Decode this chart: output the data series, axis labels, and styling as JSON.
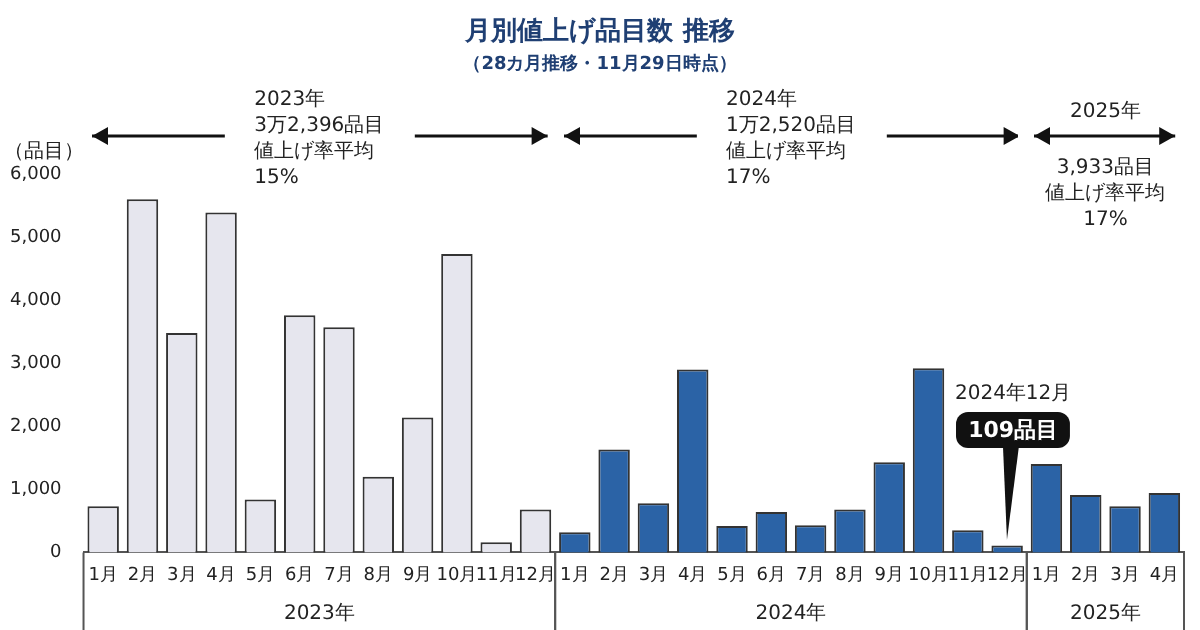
{
  "chart_data": {
    "type": "bar",
    "title": "月別値上げ品目数 推移",
    "subtitle": "（28カ月推移・11月29日時点）",
    "ylabel": "（品目）",
    "categories": [
      "1月",
      "2月",
      "3月",
      "4月",
      "5月",
      "6月",
      "7月",
      "8月",
      "9月",
      "10月",
      "11月",
      "12月",
      "1月",
      "2月",
      "3月",
      "4月",
      "5月",
      "6月",
      "7月",
      "8月",
      "9月",
      "10月",
      "11月",
      "12月",
      "1月",
      "2月",
      "3月",
      "4月"
    ],
    "series": [
      {
        "name": "2023年",
        "color": "#e6e6ee",
        "values": [
          730,
          5600,
          3480,
          5390,
          840,
          3760,
          3570,
          1200,
          2140,
          4730,
          160,
          680,
          null,
          null,
          null,
          null,
          null,
          null,
          null,
          null,
          null,
          null,
          null,
          null,
          null,
          null,
          null,
          null
        ]
      },
      {
        "name": "2024年",
        "color": "#2b63a6",
        "values": [
          null,
          null,
          null,
          null,
          null,
          null,
          null,
          null,
          null,
          null,
          null,
          null,
          320,
          1630,
          780,
          2900,
          420,
          640,
          430,
          680,
          1430,
          2920,
          350,
          109,
          null,
          null,
          null,
          null
        ],
        "value_labels": [
          null,
          null,
          null,
          null,
          null,
          null,
          null,
          null,
          null,
          null,
          null,
          null,
          null,
          null,
          null,
          null,
          null,
          null,
          null,
          null,
          null,
          null,
          null,
          "109品目",
          null,
          null,
          null,
          null
        ]
      },
      {
        "name": "2025年",
        "color": "#2b63a6",
        "values": [
          null,
          null,
          null,
          null,
          null,
          null,
          null,
          null,
          null,
          null,
          null,
          null,
          null,
          null,
          null,
          null,
          null,
          null,
          null,
          null,
          null,
          null,
          null,
          null,
          1400,
          910,
          730,
          940
        ]
      }
    ],
    "ylim": [
      0,
      6000
    ],
    "yticks": [
      0,
      {
        "value": 1000,
        "label": "1,000"
      },
      {
        "value": 2000,
        "label": "2,000"
      },
      {
        "value": 3000,
        "label": "3,000"
      },
      {
        "value": 4000,
        "label": "4,000"
      },
      {
        "value": 5000,
        "label": "5,000"
      },
      {
        "value": 6000,
        "label": "6,000"
      }
    ],
    "annotations": [
      "2023年",
      "3万2,396品目",
      "値上げ率平均",
      "15%",
      "2024年",
      "1万2,520品目",
      "値上げ率平均",
      "17%",
      "2025年",
      "3,933品目",
      "値上げ率平均",
      "17%",
      "2024年12月"
    ],
    "grid": false,
    "legend": false
  }
}
